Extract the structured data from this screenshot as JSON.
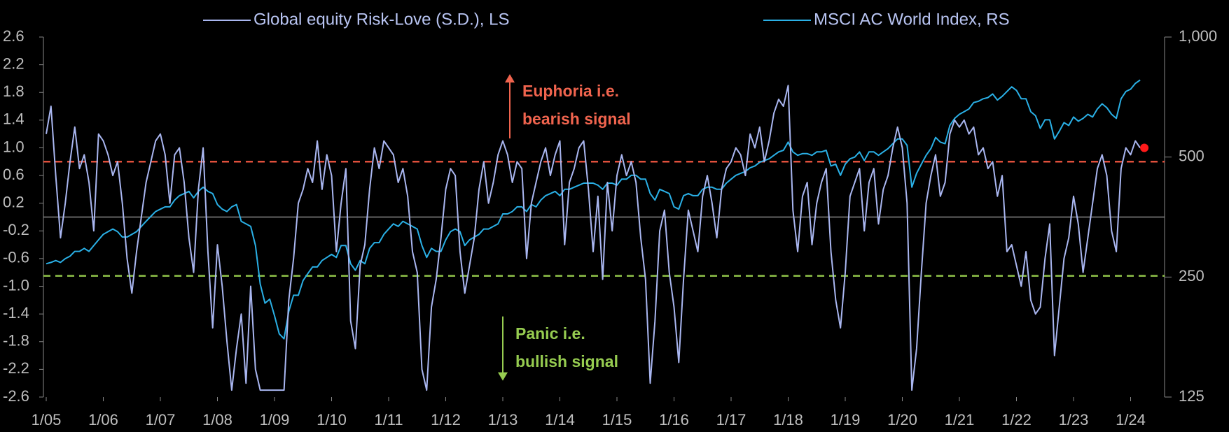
{
  "chart_data": {
    "type": "line",
    "legend_position": "top",
    "x": [
      "1/05",
      "2/05",
      "3/05",
      "4/05",
      "5/05",
      "6/05",
      "7/05",
      "8/05",
      "9/05",
      "10/05",
      "11/05",
      "12/05",
      "1/06",
      "2/06",
      "3/06",
      "4/06",
      "5/06",
      "6/06",
      "7/06",
      "8/06",
      "9/06",
      "10/06",
      "11/06",
      "12/06",
      "1/07",
      "2/07",
      "3/07",
      "4/07",
      "5/07",
      "6/07",
      "7/07",
      "8/07",
      "9/07",
      "10/07",
      "11/07",
      "12/07",
      "1/08",
      "2/08",
      "3/08",
      "4/08",
      "5/08",
      "6/08",
      "7/08",
      "8/08",
      "9/08",
      "10/08",
      "11/08",
      "12/08",
      "1/09",
      "2/09",
      "3/09",
      "4/09",
      "5/09",
      "6/09",
      "7/09",
      "8/09",
      "9/09",
      "10/09",
      "11/09",
      "12/09",
      "1/10",
      "2/10",
      "3/10",
      "4/10",
      "5/10",
      "6/10",
      "7/10",
      "8/10",
      "9/10",
      "10/10",
      "11/10",
      "12/10",
      "1/11",
      "2/11",
      "3/11",
      "4/11",
      "5/11",
      "6/11",
      "7/11",
      "8/11",
      "9/11",
      "10/11",
      "11/11",
      "12/11",
      "1/12",
      "2/12",
      "3/12",
      "4/12",
      "5/12",
      "6/12",
      "7/12",
      "8/12",
      "9/12",
      "10/12",
      "11/12",
      "12/12",
      "1/13",
      "2/13",
      "3/13",
      "4/13",
      "5/13",
      "6/13",
      "7/13",
      "8/13",
      "9/13",
      "10/13",
      "11/13",
      "12/13",
      "1/14",
      "2/14",
      "3/14",
      "4/14",
      "5/14",
      "6/14",
      "7/14",
      "8/14",
      "9/14",
      "10/14",
      "11/14",
      "12/14",
      "1/15",
      "2/15",
      "3/15",
      "4/15",
      "5/15",
      "6/15",
      "7/15",
      "8/15",
      "9/15",
      "10/15",
      "11/15",
      "12/15",
      "1/16",
      "2/16",
      "3/16",
      "4/16",
      "5/16",
      "6/16",
      "7/16",
      "8/16",
      "9/16",
      "10/16",
      "11/16",
      "12/16",
      "1/17",
      "2/17",
      "3/17",
      "4/17",
      "5/17",
      "6/17",
      "7/17",
      "8/17",
      "9/17",
      "10/17",
      "11/17",
      "12/17",
      "1/18",
      "2/18",
      "3/18",
      "4/18",
      "5/18",
      "6/18",
      "7/18",
      "8/18",
      "9/18",
      "10/18",
      "11/18",
      "12/18",
      "1/19",
      "2/19",
      "3/19",
      "4/19",
      "5/19",
      "6/19",
      "7/19",
      "8/19",
      "9/19",
      "10/19",
      "11/19",
      "12/19",
      "1/20",
      "2/20",
      "3/20",
      "4/20",
      "5/20",
      "6/20",
      "7/20",
      "8/20",
      "9/20",
      "10/20",
      "11/20",
      "12/20",
      "1/21",
      "2/21",
      "3/21",
      "4/21",
      "5/21",
      "6/21",
      "7/21",
      "8/21",
      "9/21",
      "10/21",
      "11/21",
      "12/21",
      "1/22",
      "2/22",
      "3/22",
      "4/22",
      "5/22",
      "6/22",
      "7/22",
      "8/22",
      "9/22",
      "10/22",
      "11/22",
      "12/22",
      "1/23",
      "2/23",
      "3/23",
      "4/23",
      "5/23",
      "6/23",
      "7/23",
      "8/23",
      "9/23",
      "10/23",
      "11/23",
      "12/23",
      "1/24",
      "2/24",
      "3/24"
    ],
    "series": [
      {
        "name": "Global equity Risk-Love (S.D.), LS",
        "color": "#a9b6f0",
        "axis": "y",
        "values": [
          1.2,
          1.6,
          0.6,
          -0.3,
          0.2,
          0.8,
          1.3,
          0.7,
          0.9,
          0.5,
          -0.2,
          1.2,
          1.1,
          0.9,
          0.6,
          0.8,
          0.2,
          -0.6,
          -1.1,
          -0.5,
          0.0,
          0.5,
          0.8,
          1.1,
          1.2,
          0.9,
          0.2,
          0.9,
          1.0,
          0.5,
          -0.3,
          -0.8,
          0.4,
          1.0,
          -0.5,
          -1.6,
          -0.4,
          -1.0,
          -1.8,
          -2.5,
          -1.9,
          -1.4,
          -2.4,
          -1.0,
          -2.2,
          -2.5,
          -2.5,
          -2.5,
          -2.5,
          -2.5,
          -2.5,
          -1.2,
          -0.6,
          0.2,
          0.4,
          0.7,
          0.5,
          1.1,
          0.4,
          0.9,
          0.6,
          -0.5,
          0.2,
          0.7,
          -1.5,
          -1.9,
          -0.7,
          -0.4,
          0.4,
          1.0,
          0.7,
          1.1,
          1.0,
          0.9,
          0.5,
          0.7,
          0.3,
          -0.5,
          -0.8,
          -2.2,
          -2.5,
          -1.3,
          -0.9,
          -0.3,
          0.4,
          0.7,
          0.6,
          -0.5,
          -1.1,
          -0.7,
          -0.3,
          0.4,
          0.8,
          0.2,
          0.5,
          0.9,
          1.1,
          0.9,
          0.5,
          0.8,
          0.7,
          -0.6,
          0.2,
          0.5,
          0.8,
          1.0,
          0.6,
          0.9,
          1.1,
          -0.4,
          0.5,
          0.7,
          1.0,
          1.1,
          0.4,
          -0.5,
          0.3,
          -0.9,
          0.5,
          -0.2,
          0.6,
          0.9,
          0.6,
          0.8,
          0.5,
          -0.3,
          -0.9,
          -2.4,
          -1.5,
          -0.2,
          0.1,
          -0.8,
          -1.3,
          -2.1,
          -0.9,
          0.1,
          -0.2,
          -0.5,
          0.3,
          0.6,
          0.2,
          -0.3,
          0.4,
          0.7,
          0.8,
          1.0,
          0.9,
          0.6,
          1.2,
          1.0,
          1.3,
          0.8,
          1.1,
          1.5,
          1.7,
          1.6,
          1.9,
          0.1,
          -0.5,
          0.3,
          0.5,
          -0.4,
          0.2,
          0.5,
          0.7,
          -0.5,
          -1.2,
          -1.6,
          -0.8,
          0.3,
          0.5,
          0.7,
          -0.2,
          0.5,
          0.7,
          -0.1,
          0.4,
          0.6,
          1.0,
          1.3,
          1.0,
          0.2,
          -2.5,
          -1.9,
          -0.8,
          0.2,
          0.6,
          0.9,
          0.3,
          0.5,
          1.2,
          1.4,
          1.3,
          1.4,
          1.2,
          1.3,
          0.9,
          1.0,
          0.7,
          0.8,
          0.3,
          0.6,
          -0.5,
          -0.4,
          -0.7,
          -1.0,
          -0.5,
          -1.2,
          -1.4,
          -1.3,
          -0.6,
          -0.1,
          -2.0,
          -1.3,
          -0.6,
          -0.3,
          0.3,
          -0.1,
          -0.8,
          -0.3,
          0.2,
          0.7,
          0.9,
          0.6,
          -0.2,
          -0.5,
          0.7,
          1.0,
          0.9,
          1.1,
          1.0
        ]
      },
      {
        "name": "MSCI AC World Index, RS",
        "color": "#2ab0e6",
        "axis": "y2",
        "values": [
          270,
          272,
          275,
          272,
          278,
          282,
          290,
          290,
          295,
          290,
          300,
          310,
          320,
          325,
          330,
          325,
          315,
          315,
          320,
          325,
          335,
          345,
          355,
          365,
          370,
          375,
          375,
          390,
          400,
          405,
          410,
          395,
          410,
          420,
          410,
          405,
          380,
          370,
          365,
          375,
          380,
          345,
          340,
          335,
          300,
          240,
          215,
          220,
          200,
          180,
          175,
          205,
          225,
          225,
          245,
          255,
          265,
          265,
          275,
          280,
          285,
          280,
          300,
          300,
          270,
          260,
          275,
          270,
          295,
          305,
          305,
          320,
          330,
          340,
          335,
          345,
          340,
          335,
          330,
          300,
          280,
          295,
          290,
          290,
          310,
          325,
          330,
          325,
          300,
          310,
          315,
          320,
          330,
          330,
          335,
          340,
          360,
          360,
          365,
          375,
          375,
          365,
          380,
          375,
          390,
          400,
          405,
          410,
          400,
          415,
          415,
          420,
          425,
          430,
          430,
          430,
          425,
          415,
          430,
          430,
          425,
          440,
          440,
          450,
          450,
          440,
          440,
          405,
          390,
          415,
          410,
          405,
          375,
          370,
          400,
          405,
          400,
          400,
          415,
          420,
          420,
          415,
          415,
          430,
          440,
          450,
          455,
          460,
          470,
          475,
          485,
          490,
          495,
          505,
          515,
          520,
          545,
          515,
          505,
          510,
          510,
          505,
          515,
          515,
          520,
          475,
          480,
          450,
          480,
          495,
          500,
          515,
          490,
          515,
          515,
          505,
          515,
          525,
          540,
          555,
          555,
          535,
          420,
          455,
          480,
          505,
          525,
          560,
          545,
          540,
          600,
          625,
          640,
          650,
          660,
          685,
          690,
          700,
          705,
          720,
          695,
          710,
          730,
          750,
          735,
          700,
          700,
          650,
          635,
          590,
          620,
          620,
          555,
          580,
          610,
          600,
          630,
          615,
          625,
          640,
          630,
          660,
          680,
          665,
          640,
          625,
          700,
          730,
          740,
          765,
          780
        ]
      }
    ],
    "ylim": [
      -2.6,
      2.6
    ],
    "yticks": [
      2.6,
      2.2,
      1.8,
      1.4,
      {
        "value": 1.0,
        "label": "1.0"
      },
      0.6,
      0.2,
      -0.2,
      -0.6,
      {
        "value": -1.0,
        "label": "-1.0"
      },
      -1.4,
      -1.8,
      -2.2,
      -2.6
    ],
    "y2lim": [
      125,
      1000
    ],
    "y2log": true,
    "y2ticks": [
      {
        "value": 1000,
        "label": "1,000"
      },
      500,
      250,
      125
    ],
    "reference_lines": [
      {
        "value": 0.8,
        "color": "#e0503c",
        "dashed": true
      },
      {
        "value": -0.85,
        "color": "#8fc24a",
        "dashed": true
      },
      {
        "value": 0,
        "color": "#8a8a8a",
        "dashed": false
      }
    ],
    "last_point_color": "#ff1a1a",
    "annotations": [
      {
        "lines": [
          "Euphoria  i.e.",
          "bearish signal"
        ],
        "color": "#f0644e",
        "arrow": "up",
        "at_value": 1.6
      },
      {
        "lines": [
          "Panic i.e.",
          "bullish signal"
        ],
        "color": "#96cc50",
        "arrow": "down",
        "at_value": -1.9
      }
    ]
  }
}
